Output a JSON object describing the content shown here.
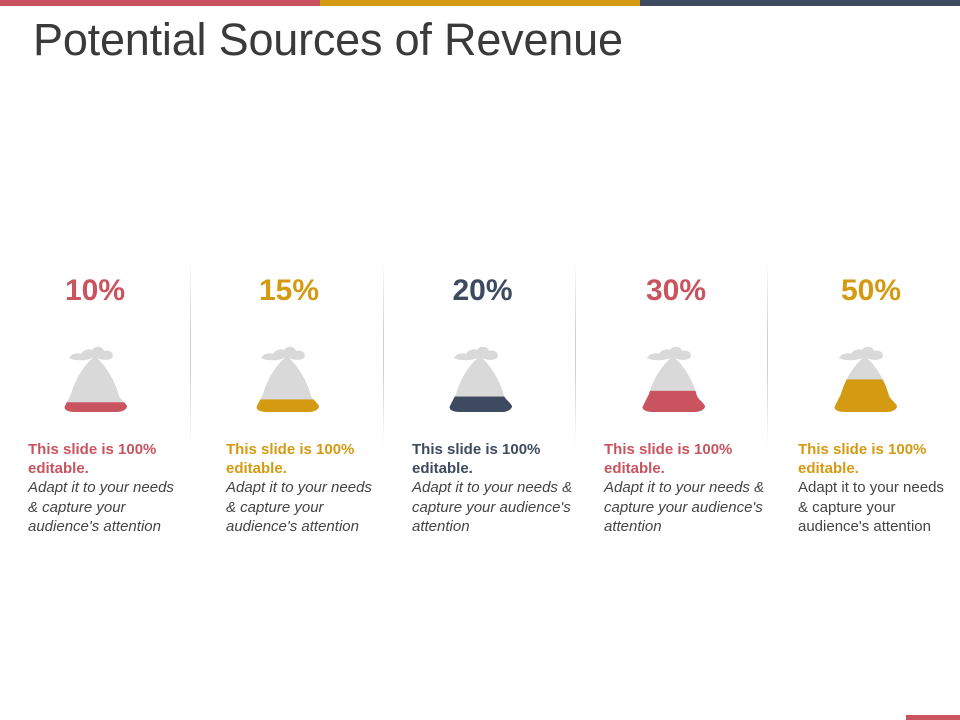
{
  "title": "Potential Sources of Revenue",
  "colors": {
    "red": "#c9545f",
    "gold": "#d49a12",
    "navy": "#3e4a5f",
    "bag_gray": "#d9d9d9",
    "title": "#3a3a3a"
  },
  "items": [
    {
      "percent": "10%",
      "fill_fraction": 0.1,
      "color": "#c9545f",
      "headline": "This slide is 100% editable.",
      "body": "Adapt it to your needs & capture your audience's attention",
      "body_italic": true
    },
    {
      "percent": "15%",
      "fill_fraction": 0.15,
      "color": "#d49a12",
      "headline": "This slide is 100% editable.",
      "body": "Adapt it to your needs & capture your audience's attention",
      "body_italic": true
    },
    {
      "percent": "20%",
      "fill_fraction": 0.2,
      "color": "#3e4a5f",
      "headline": "This slide is 100% editable.",
      "body": "Adapt it to your needs & capture your audience's attention",
      "body_italic": true
    },
    {
      "percent": "30%",
      "fill_fraction": 0.3,
      "color": "#c9545f",
      "headline": "This slide is 100% editable.",
      "body": "Adapt it to your needs & capture your audience's attention",
      "body_italic": true
    },
    {
      "percent": "50%",
      "fill_fraction": 0.5,
      "color": "#d49a12",
      "headline": "This slide is 100% editable.",
      "body": "Adapt it to your needs & capture your audience's attention",
      "body_italic": false
    }
  ]
}
